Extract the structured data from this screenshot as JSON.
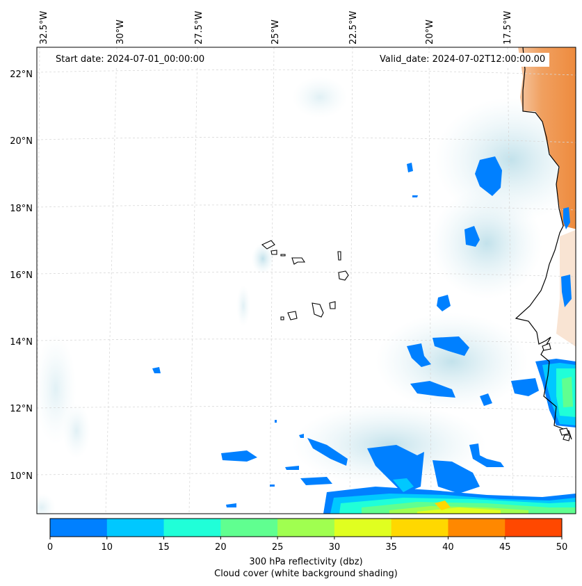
{
  "map": {
    "start_date": "Start date: 2024-07-01_00:00:00",
    "valid_date": "Valid_date: 2024-07-02T12:00:00.00",
    "lon_labels": [
      "32.5°W",
      "30°W",
      "27.5°W",
      "25°W",
      "22.5°W",
      "20°W",
      "17.5°W"
    ],
    "lat_labels": [
      "22°N",
      "20°N",
      "18°N",
      "16°N",
      "14°N",
      "12°N",
      "10°N"
    ]
  },
  "colorbar": {
    "title": "300 hPa reflectivity (dbz)",
    "subtitle": "Cloud cover (white background shading)",
    "ticks": [
      "0",
      "10",
      "15",
      "20",
      "25",
      "30",
      "35",
      "40",
      "45",
      "50"
    ],
    "colors": [
      "#0080ff",
      "#00c8ff",
      "#20ffd8",
      "#60ff90",
      "#a0ff50",
      "#e0ff20",
      "#ffd800",
      "#ff8800",
      "#ff4800"
    ]
  },
  "colors": {
    "coastline": "#000000",
    "land_heat": "#f0904a",
    "cloud": "#c8e4ec"
  }
}
